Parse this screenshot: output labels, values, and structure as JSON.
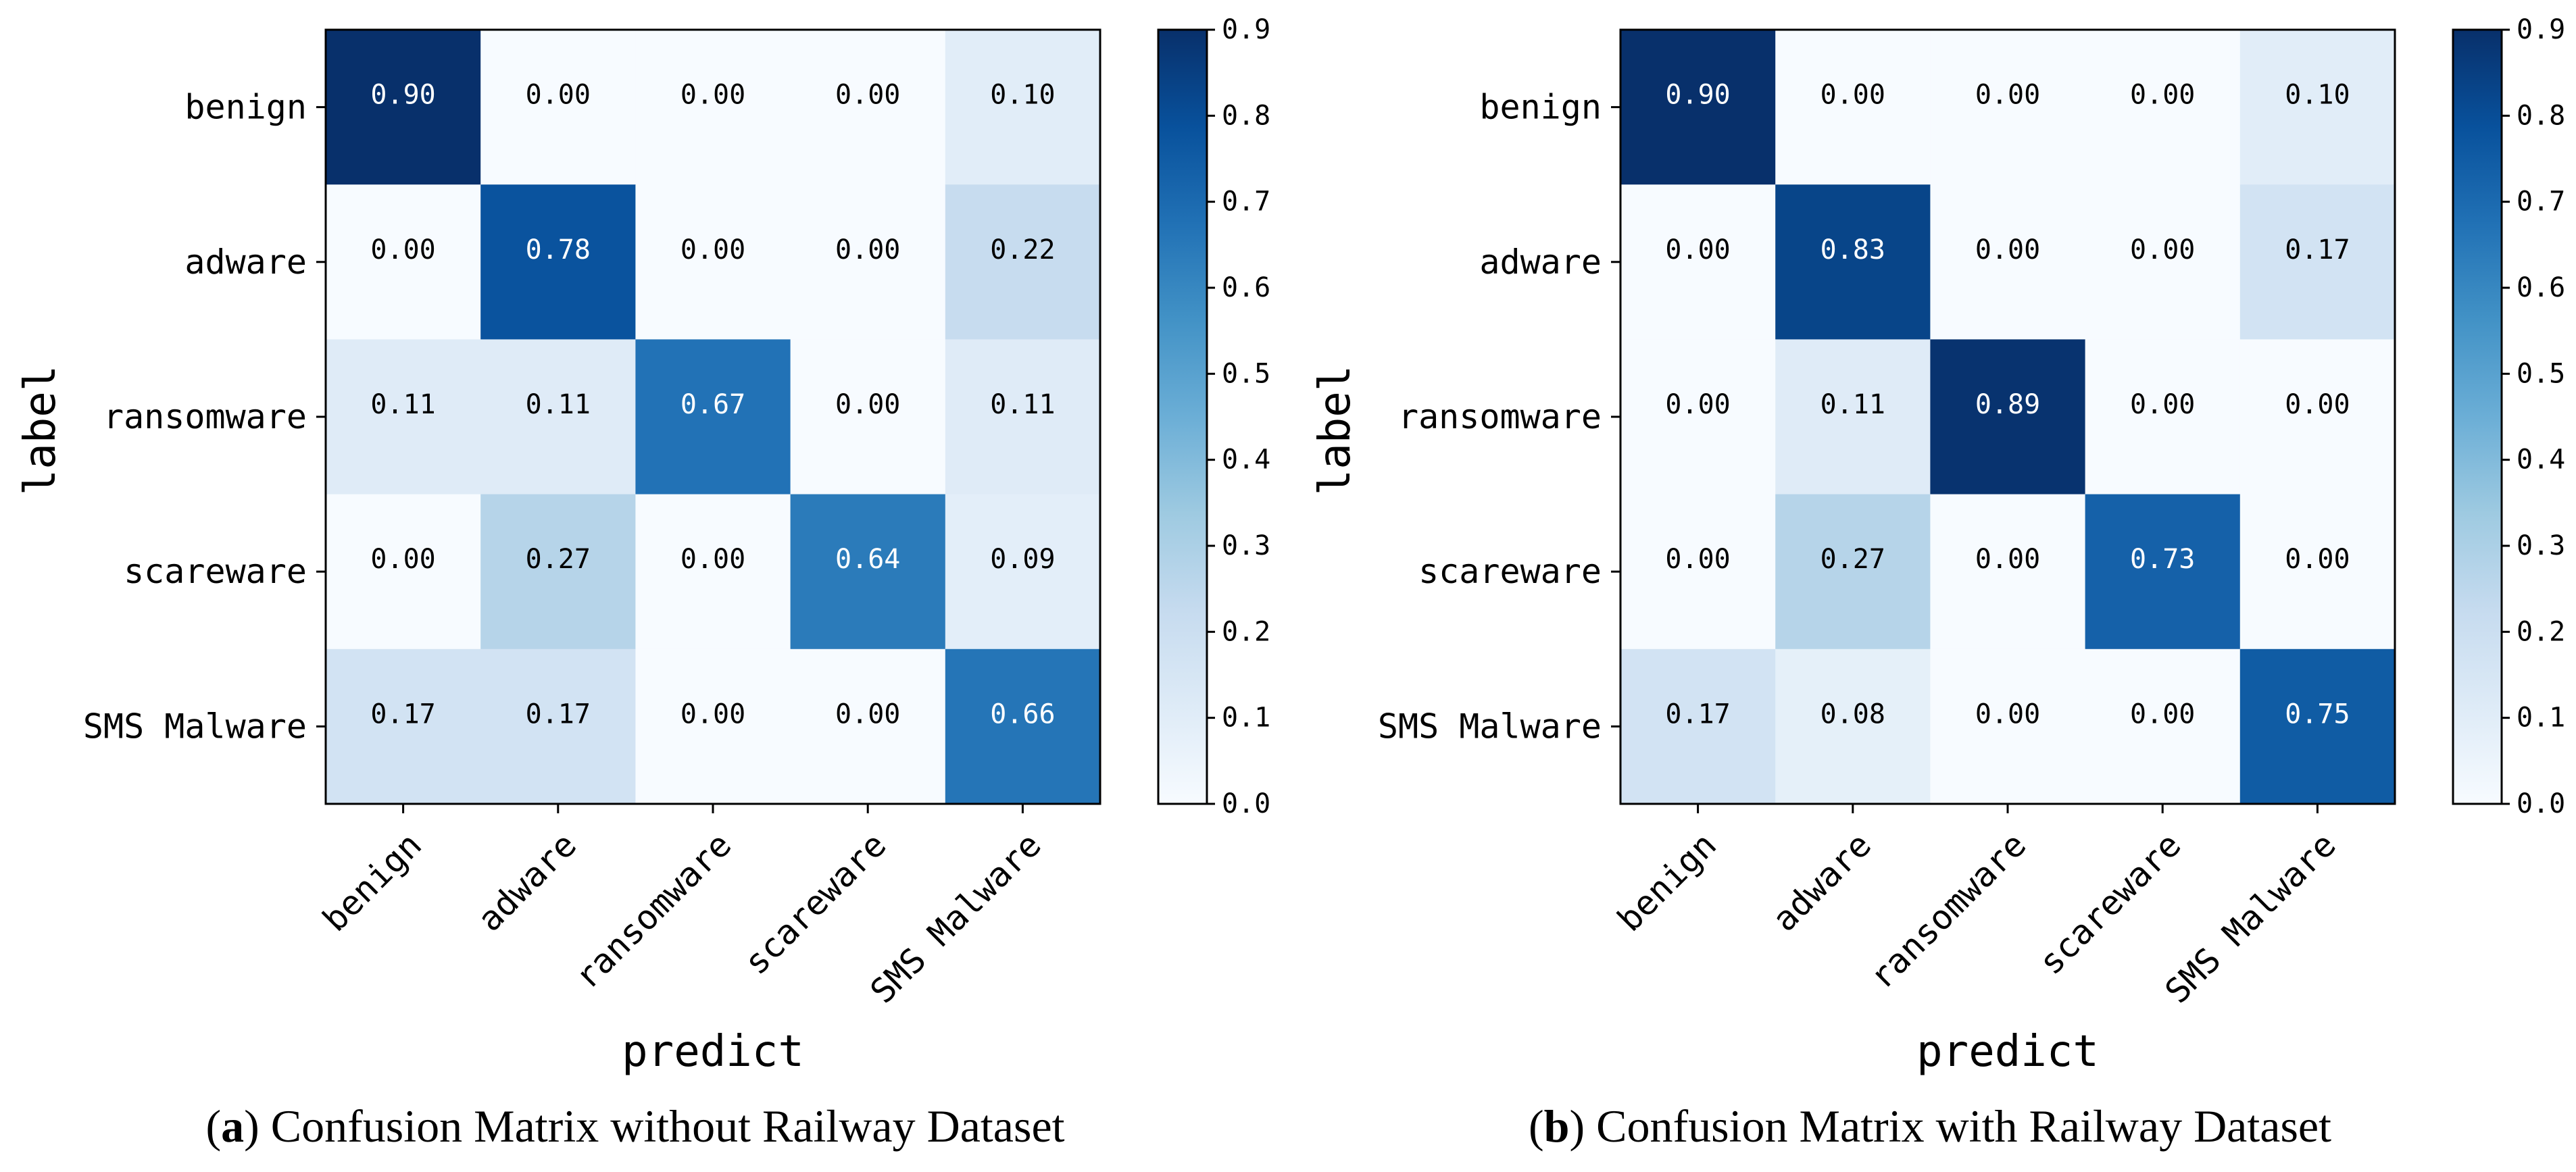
{
  "colormap": {
    "name": "Blues",
    "stops": [
      "#f7fbff",
      "#deebf7",
      "#c6dbef",
      "#9ecae1",
      "#6baed6",
      "#4292c6",
      "#2171b5",
      "#08519c",
      "#08306b"
    ]
  },
  "chart_data": [
    {
      "type": "heatmap",
      "caption_letter": "a",
      "caption_text": ") Confusion Matrix without Railway Dataset",
      "caption_open": "(",
      "xlabel": "predict",
      "ylabel": "label",
      "categories": [
        "benign",
        "adware",
        "ransomware",
        "scareware",
        "SMS Malware"
      ],
      "rows": [
        "benign",
        "adware",
        "ransomware",
        "scareware",
        "SMS Malware"
      ],
      "values": [
        [
          0.9,
          0.0,
          0.0,
          0.0,
          0.1
        ],
        [
          0.0,
          0.78,
          0.0,
          0.0,
          0.22
        ],
        [
          0.11,
          0.11,
          0.67,
          0.0,
          0.11
        ],
        [
          0.0,
          0.27,
          0.0,
          0.64,
          0.09
        ],
        [
          0.17,
          0.17,
          0.0,
          0.0,
          0.66
        ]
      ],
      "value_format": "0.00",
      "colorbar": {
        "range": [
          0.0,
          0.9
        ],
        "ticks": [
          "0.0",
          "0.1",
          "0.2",
          "0.3",
          "0.4",
          "0.5",
          "0.6",
          "0.7",
          "0.8",
          "0.9"
        ]
      }
    },
    {
      "type": "heatmap",
      "caption_letter": "b",
      "caption_text": ") Confusion Matrix with Railway Dataset",
      "caption_open": "(",
      "xlabel": "predict",
      "ylabel": "label",
      "categories": [
        "benign",
        "adware",
        "ransomware",
        "scareware",
        "SMS Malware"
      ],
      "rows": [
        "benign",
        "adware",
        "ransomware",
        "scareware",
        "SMS Malware"
      ],
      "values": [
        [
          0.9,
          0.0,
          0.0,
          0.0,
          0.1
        ],
        [
          0.0,
          0.83,
          0.0,
          0.0,
          0.17
        ],
        [
          0.0,
          0.11,
          0.89,
          0.0,
          0.0
        ],
        [
          0.0,
          0.27,
          0.0,
          0.73,
          0.0
        ],
        [
          0.17,
          0.08,
          0.0,
          0.0,
          0.75
        ]
      ],
      "value_format": "0.00",
      "colorbar": {
        "range": [
          0.0,
          0.9
        ],
        "ticks": [
          "0.0",
          "0.1",
          "0.2",
          "0.3",
          "0.4",
          "0.5",
          "0.6",
          "0.7",
          "0.8",
          "0.9"
        ]
      }
    }
  ]
}
